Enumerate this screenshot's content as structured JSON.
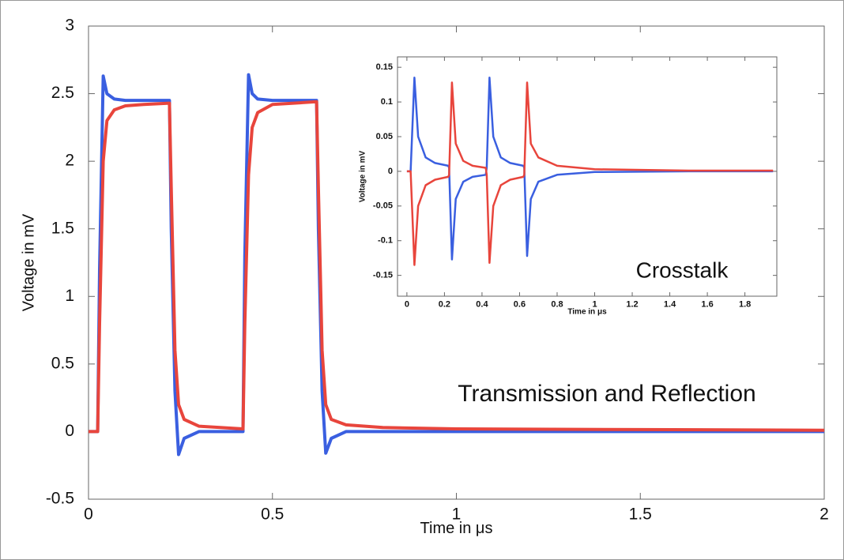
{
  "chart_data": [
    {
      "type": "line",
      "x_label": "Time in μs",
      "y_label": "Voltage in mV",
      "annotation": "Transmission and Reflection",
      "xlim": [
        0,
        2
      ],
      "ylim": [
        -0.5,
        3
      ],
      "xticks": [
        0,
        0.5,
        1,
        1.5,
        2
      ],
      "yticks": [
        -0.5,
        0,
        0.5,
        1,
        1.5,
        2,
        2.5,
        3
      ],
      "grid": false,
      "x": [
        0,
        0.025,
        0.03,
        0.04,
        0.05,
        0.07,
        0.1,
        0.15,
        0.22,
        0.225,
        0.235,
        0.245,
        0.26,
        0.3,
        0.42,
        0.425,
        0.435,
        0.445,
        0.46,
        0.5,
        0.62,
        0.625,
        0.635,
        0.645,
        0.66,
        0.7,
        0.8,
        1.0,
        1.5,
        2.0
      ],
      "series": [
        {
          "color": "#3a5fe0",
          "values": [
            0,
            0,
            1.2,
            2.63,
            2.5,
            2.46,
            2.45,
            2.45,
            2.45,
            1.5,
            0.3,
            -0.17,
            -0.05,
            0,
            0,
            1.3,
            2.64,
            2.5,
            2.46,
            2.45,
            2.45,
            1.5,
            0.3,
            -0.16,
            -0.05,
            0,
            0,
            0,
            0,
            0
          ]
        },
        {
          "color": "#e8453c",
          "values": [
            0,
            0,
            0.8,
            2.0,
            2.3,
            2.38,
            2.41,
            2.42,
            2.43,
            1.8,
            0.6,
            0.2,
            0.09,
            0.04,
            0.02,
            0.8,
            1.9,
            2.25,
            2.36,
            2.42,
            2.44,
            1.8,
            0.6,
            0.2,
            0.09,
            0.05,
            0.03,
            0.02,
            0.015,
            0.01
          ]
        }
      ]
    },
    {
      "type": "line",
      "x_label": "Time in μs",
      "y_label": "Voltage in mV",
      "annotation": "Crosstalk",
      "xlim": [
        -0.05,
        1.97
      ],
      "ylim": [
        -0.18,
        0.165
      ],
      "xticks": [
        0,
        0.2,
        0.4,
        0.6,
        0.8,
        1,
        1.2,
        1.4,
        1.6,
        1.8
      ],
      "yticks": [
        -0.15,
        -0.1,
        -0.05,
        0,
        0.05,
        0.1,
        0.15
      ],
      "grid": false,
      "x": [
        0,
        0.02,
        0.04,
        0.06,
        0.1,
        0.15,
        0.22,
        0.225,
        0.24,
        0.26,
        0.3,
        0.35,
        0.42,
        0.425,
        0.44,
        0.46,
        0.5,
        0.55,
        0.62,
        0.625,
        0.64,
        0.66,
        0.7,
        0.8,
        1.0,
        1.5,
        1.95
      ],
      "series": [
        {
          "color": "#3a5fe0",
          "values": [
            0,
            0,
            0.135,
            0.05,
            0.02,
            0.012,
            0.008,
            0.005,
            -0.127,
            -0.04,
            -0.015,
            -0.008,
            -0.005,
            0.005,
            0.135,
            0.05,
            0.02,
            0.012,
            0.008,
            0.005,
            -0.122,
            -0.04,
            -0.015,
            -0.005,
            -0.001,
            0,
            0
          ]
        },
        {
          "color": "#e8453c",
          "values": [
            0,
            0,
            -0.135,
            -0.05,
            -0.02,
            -0.012,
            -0.008,
            -0.005,
            0.128,
            0.04,
            0.015,
            0.008,
            0.005,
            -0.005,
            -0.132,
            -0.05,
            -0.02,
            -0.012,
            -0.008,
            -0.005,
            0.128,
            0.04,
            0.02,
            0.008,
            0.003,
            0.001,
            0.001
          ]
        }
      ]
    }
  ]
}
